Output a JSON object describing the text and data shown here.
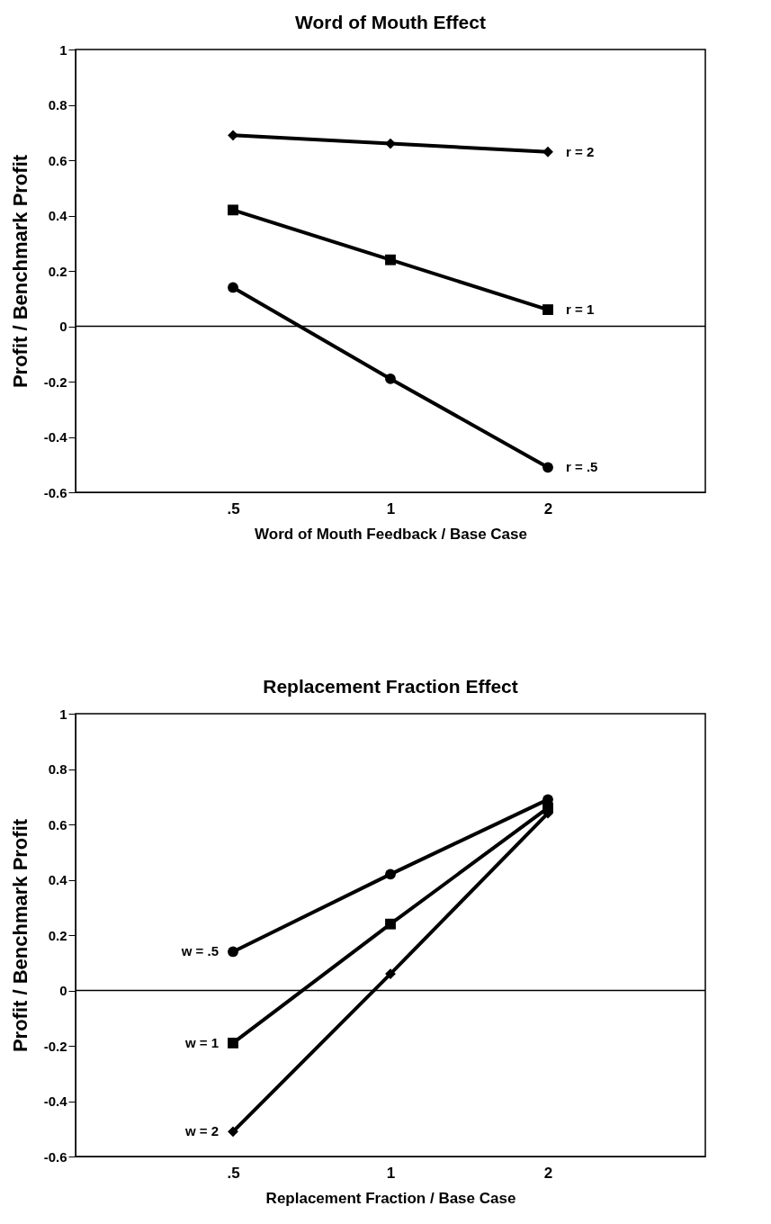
{
  "chart_data": [
    {
      "type": "line",
      "title": "Word of Mouth Effect",
      "xlabel": "Word of Mouth Feedback / Base Case",
      "ylabel": "Profit / Benchmark Profit",
      "categories": [
        ".5",
        "1",
        "2"
      ],
      "ylim": [
        -0.6,
        1
      ],
      "yticks": [
        -0.6,
        -0.4,
        -0.2,
        0,
        0.2,
        0.4,
        0.6,
        0.8,
        1
      ],
      "grid": false,
      "legend": false,
      "line_style": "solid",
      "ref_lines": [
        {
          "axis": "y",
          "value": 0,
          "label": null
        }
      ],
      "series": [
        {
          "name": "r = 2",
          "color": "#000000",
          "marker": "diamond",
          "values": [
            0.69,
            0.66,
            0.63
          ]
        },
        {
          "name": "r = 1",
          "color": "#000000",
          "marker": "square",
          "values": [
            0.42,
            0.24,
            0.06
          ]
        },
        {
          "name": "r = .5",
          "color": "#000000",
          "marker": "circle",
          "values": [
            0.14,
            -0.19,
            -0.51
          ]
        }
      ]
    },
    {
      "type": "line",
      "title": "Replacement Fraction Effect",
      "xlabel": "Replacement Fraction / Base Case",
      "ylabel": "Profit / Benchmark Profit",
      "categories": [
        ".5",
        "1",
        "2"
      ],
      "ylim": [
        -0.6,
        1
      ],
      "yticks": [
        -0.6,
        -0.4,
        -0.2,
        0,
        0.2,
        0.4,
        0.6,
        0.8,
        1
      ],
      "grid": false,
      "legend": false,
      "line_style": "solid",
      "ref_lines": [
        {
          "axis": "y",
          "value": 0,
          "label": null
        }
      ],
      "series": [
        {
          "name": "w = .5",
          "color": "#000000",
          "marker": "circle",
          "values": [
            0.14,
            0.42,
            0.69
          ]
        },
        {
          "name": "w = 1",
          "color": "#000000",
          "marker": "square",
          "values": [
            -0.19,
            0.24,
            0.66
          ]
        },
        {
          "name": "w = 2",
          "color": "#000000",
          "marker": "diamond",
          "values": [
            -0.51,
            0.06,
            0.64
          ]
        }
      ]
    }
  ]
}
